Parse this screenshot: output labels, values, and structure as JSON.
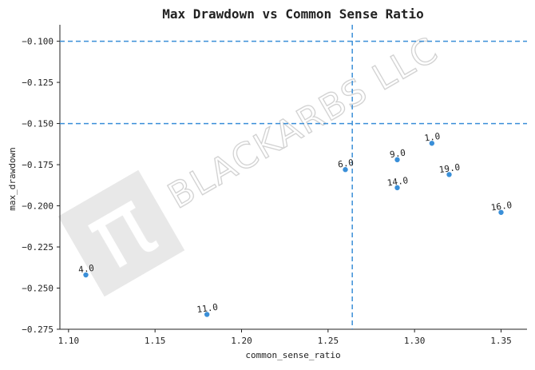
{
  "chart_data": {
    "type": "scatter",
    "title": "Max Drawdown vs Common Sense Ratio",
    "xlabel": "common_sense_ratio",
    "ylabel": "max_drawdown",
    "xlim": [
      1.095,
      1.365
    ],
    "ylim": [
      -0.275,
      -0.09
    ],
    "xticks": [
      1.1,
      1.15,
      1.2,
      1.25,
      1.3,
      1.35
    ],
    "xtick_labels": [
      "1.10",
      "1.15",
      "1.20",
      "1.25",
      "1.30",
      "1.35"
    ],
    "yticks": [
      -0.1,
      -0.125,
      -0.15,
      -0.175,
      -0.2,
      -0.225,
      -0.25,
      -0.275
    ],
    "ytick_labels": [
      "−0.100",
      "−0.125",
      "−0.150",
      "−0.175",
      "−0.200",
      "−0.225",
      "−0.250",
      "−0.275"
    ],
    "grid": false,
    "point_color": "#3a8fd8",
    "reference_line_color": "#3a8fd8",
    "hlines": [
      -0.1,
      -0.15
    ],
    "vlines": [
      1.264
    ],
    "points": [
      {
        "x": 1.11,
        "y": -0.242,
        "label": "4.0"
      },
      {
        "x": 1.18,
        "y": -0.266,
        "label": "11.0"
      },
      {
        "x": 1.26,
        "y": -0.178,
        "label": "6.0"
      },
      {
        "x": 1.29,
        "y": -0.172,
        "label": "9.0"
      },
      {
        "x": 1.29,
        "y": -0.189,
        "label": "14.0"
      },
      {
        "x": 1.31,
        "y": -0.162,
        "label": "1.0"
      },
      {
        "x": 1.32,
        "y": -0.181,
        "label": "19.0"
      },
      {
        "x": 1.35,
        "y": -0.204,
        "label": "16.0"
      }
    ]
  },
  "watermark": {
    "text": "BLACKARBS LLC",
    "logo_glyph": "π"
  }
}
